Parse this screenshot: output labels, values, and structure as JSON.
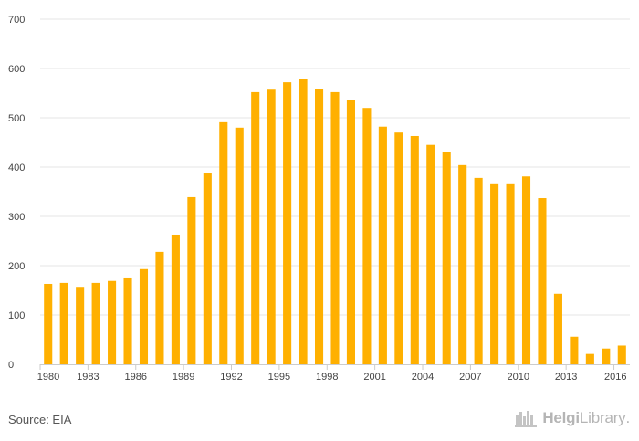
{
  "chart_data": {
    "type": "bar",
    "title": "",
    "xlabel": "",
    "ylabel": "",
    "ylim": [
      0,
      700
    ],
    "yticks": [
      0,
      100,
      200,
      300,
      400,
      500,
      600,
      700
    ],
    "xtick_labels": [
      "1980",
      "1983",
      "1986",
      "1989",
      "1992",
      "1995",
      "1998",
      "2001",
      "2004",
      "2007",
      "2010",
      "2013",
      "2016"
    ],
    "categories": [
      "1980",
      "1981",
      "1982",
      "1983",
      "1984",
      "1985",
      "1986",
      "1987",
      "1988",
      "1989",
      "1990",
      "1991",
      "1992",
      "1993",
      "1994",
      "1995",
      "1996",
      "1997",
      "1998",
      "1999",
      "2000",
      "2001",
      "2002",
      "2003",
      "2004",
      "2005",
      "2006",
      "2007",
      "2008",
      "2009",
      "2010",
      "2011",
      "2012",
      "2013",
      "2014",
      "2015",
      "2016"
    ],
    "values": [
      163,
      165,
      157,
      165,
      169,
      176,
      193,
      228,
      263,
      339,
      387,
      491,
      480,
      552,
      557,
      572,
      579,
      559,
      552,
      537,
      520,
      482,
      470,
      463,
      445,
      430,
      404,
      378,
      367,
      367,
      381,
      337,
      143,
      56,
      21,
      32,
      38
    ],
    "grid": true,
    "colors": {
      "bar": "#FFB000",
      "grid": "#e6e6e6",
      "axis": "#cccccc",
      "tick_text": "#444444"
    }
  },
  "footer": {
    "source": "Source: EIA",
    "brand_part1": "Helgi",
    "brand_part2": "Library",
    "brand_suffix": "."
  }
}
